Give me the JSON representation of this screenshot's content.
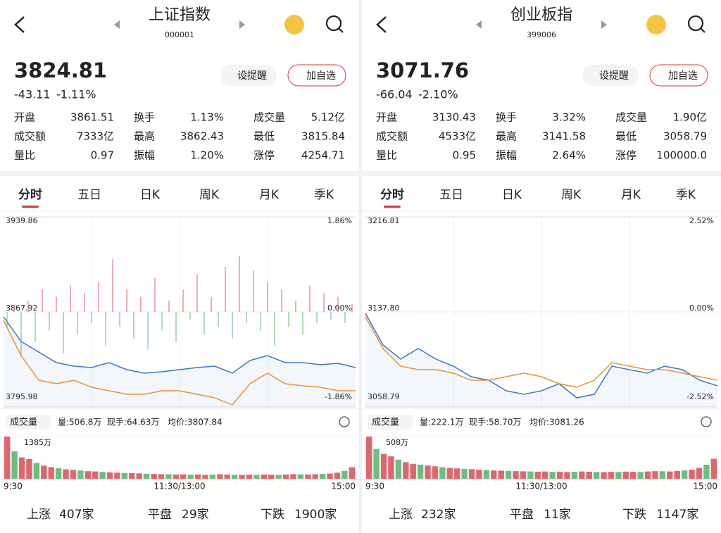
{
  "panels": [
    {
      "title": "上证指数",
      "code": "000001",
      "price": "3824.81",
      "change": "-43.11",
      "change_pct": "-1.11%",
      "buttons": [
        "设提醒",
        "加自选"
      ],
      "stats": [
        {
          "label": "开盘",
          "value": "3861.51",
          "color": "#2e9b4e"
        },
        {
          "label": "换手",
          "value": "1.13%",
          "color": "#222"
        },
        {
          "label": "成交量",
          "value": "5.12亿",
          "color": "#222"
        },
        {
          "label": "成交额",
          "value": "7333亿",
          "color": "#222"
        },
        {
          "label": "最高",
          "value": "3862.43",
          "color": "#2e9b4e"
        },
        {
          "label": "最低",
          "value": "3815.84",
          "color": "#2e9b4e"
        },
        {
          "label": "量比",
          "value": "0.97",
          "color": "#222"
        },
        {
          "label": "振幅",
          "value": "1.20%",
          "color": "#222"
        },
        {
          "label": "涨停",
          "value": "4254.71",
          "color": "#d9363e"
        }
      ],
      "tabs": [
        "分时",
        "五日",
        "日K",
        "周K",
        "月K",
        "季K"
      ],
      "chart": {
        "ylim": [
          3795.98,
          3939.86
        ],
        "yticks": [
          {
            "value": 3795.98,
            "label": "3795.98"
          },
          {
            "value": 3867.92,
            "label": "3867.92"
          },
          {
            "value": 3939.86,
            "label": "3939.86"
          }
        ],
        "pct_labels": [
          "-1.86%",
          "0.00%",
          "1.86%"
        ],
        "series": [
          {
            "color": "#3a78c8",
            "values": [
              3864.19,
              3845.54,
              3837.54,
              3829.55,
              3826.88,
              3825.82,
              3829.55,
              3824.22,
              3821.56,
              3822.62,
              3824.22,
              3825.82,
              3826.88,
              3821.56,
              3831.15,
              3834.88,
              3829.55,
              3829.55,
              3827.95,
              3829.02,
              3825.82
            ]
          },
          {
            "color": "#e8932e",
            "values": [
              3861.53,
              3834.88,
              3816.23,
              3813.56,
              3816.23,
              3810.9,
              3808.23,
              3805.57,
              3805.57,
              3808.23,
              3808.23,
              3805.57,
              3802.9,
              3797.57,
              3813.56,
              3821.56,
              3813.56,
              3811.96,
              3810.9,
              3808.23,
              3808.23
            ]
          }
        ],
        "breadth_bars": [
          -20,
          10,
          -60,
          15,
          -40,
          30,
          -25,
          20,
          -55,
          35,
          -30,
          25,
          -15,
          40,
          -45,
          70,
          -20,
          30,
          -35,
          20,
          -50,
          45,
          -25,
          15,
          -40,
          30,
          -10,
          50,
          -30,
          20,
          -20,
          60,
          -35,
          75,
          -15,
          55,
          -25,
          40,
          -45,
          30,
          -20,
          15,
          -30,
          35,
          -15,
          25,
          -10,
          20,
          -15,
          10
        ]
      },
      "volume_label": "成交量",
      "volume_info": [
        "量:506.8万",
        "现手:64.63万",
        "均价:3807.84"
      ],
      "volume": {
        "max_label": "1385万",
        "ylim": [
          0,
          1385
        ],
        "values": [
          1385,
          900,
          700,
          650,
          520,
          430,
          380,
          350,
          310,
          290,
          270,
          250,
          240,
          225,
          210,
          200,
          190,
          185,
          175,
          165,
          160,
          150,
          150,
          140,
          145,
          135,
          140,
          130,
          135,
          150,
          140,
          130,
          125,
          135,
          130,
          140,
          135,
          130,
          140,
          150,
          145,
          140,
          150,
          160,
          170,
          200,
          260,
          380
        ]
      },
      "times": [
        "9:30",
        "11:30/13:00",
        "15:00"
      ],
      "breadth": [
        {
          "label": "上涨",
          "value": "407家",
          "color": "#d9363e"
        },
        {
          "label": "平盘",
          "value": "29家",
          "color": "#b0b6c2"
        },
        {
          "label": "下跌",
          "value": "1900家",
          "color": "#2e9b4e"
        }
      ]
    },
    {
      "title": "创业板指",
      "code": "399006",
      "price": "3071.76",
      "change": "-66.04",
      "change_pct": "-2.10%",
      "buttons": [
        "设提醒",
        "加自选"
      ],
      "stats": [
        {
          "label": "开盘",
          "value": "3130.43",
          "color": "#2e9b4e"
        },
        {
          "label": "换手",
          "value": "3.32%",
          "color": "#222"
        },
        {
          "label": "成交量",
          "value": "1.90亿",
          "color": "#222"
        },
        {
          "label": "成交额",
          "value": "4533亿",
          "color": "#222"
        },
        {
          "label": "最高",
          "value": "3141.58",
          "color": "#d9363e"
        },
        {
          "label": "最低",
          "value": "3058.79",
          "color": "#2e9b4e"
        },
        {
          "label": "量比",
          "value": "0.95",
          "color": "#222"
        },
        {
          "label": "振幅",
          "value": "2.64%",
          "color": "#222"
        },
        {
          "label": "涨停",
          "value": "100000.0",
          "color": "#d9363e"
        }
      ],
      "tabs": [
        "分时",
        "五日",
        "日K",
        "周K",
        "月K",
        "季K"
      ],
      "chart": {
        "ylim": [
          3058.79,
          3216.81
        ],
        "yticks": [
          {
            "value": 3058.79,
            "label": "3058.79"
          },
          {
            "value": 3137.8,
            "label": "3137.80"
          },
          {
            "value": 3216.81,
            "label": "3216.81"
          }
        ],
        "pct_labels": [
          "-2.52%",
          "0.00%",
          "2.52%"
        ],
        "series": [
          {
            "color": "#3a78c8",
            "values": [
              3136.62,
              3110.28,
              3098.58,
              3107.36,
              3098.58,
              3092.72,
              3083.95,
              3081.02,
              3072.24,
              3069.31,
              3072.24,
              3078.1,
              3066.39,
              3069.31,
              3092.72,
              3089.8,
              3086.87,
              3092.72,
              3089.8,
              3081.02,
              3076.34
            ]
          },
          {
            "color": "#e8932e",
            "values": [
              3133.69,
              3107.36,
              3092.72,
              3089.8,
              3089.8,
              3086.87,
              3081.02,
              3081.02,
              3083.95,
              3086.87,
              3083.95,
              3078.1,
              3075.17,
              3081.02,
              3095.65,
              3092.72,
              3089.8,
              3089.8,
              3086.87,
              3083.95,
              3081.02
            ]
          }
        ]
      },
      "volume_label": "成交量",
      "volume_info": [
        "量:222.1万",
        "现手:58.70万",
        "均价:3081.26"
      ],
      "volume": {
        "max_label": "508万",
        "ylim": [
          0,
          508
        ],
        "values": [
          508,
          360,
          300,
          270,
          230,
          200,
          180,
          170,
          160,
          150,
          140,
          130,
          125,
          120,
          115,
          110,
          105,
          100,
          98,
          95,
          92,
          90,
          88,
          85,
          88,
          84,
          86,
          82,
          84,
          88,
          85,
          82,
          80,
          84,
          82,
          86,
          84,
          82,
          88,
          92,
          90,
          88,
          95,
          100,
          110,
          130,
          170,
          240
        ]
      },
      "times": [
        "9:30",
        "11:30/13:00",
        "15:00"
      ],
      "breadth": [
        {
          "label": "上涨",
          "value": "232家",
          "color": "#d9363e"
        },
        {
          "label": "平盘",
          "value": "11家",
          "color": "#b0b6c2"
        },
        {
          "label": "下跌",
          "value": "1147家",
          "color": "#2e9b4e"
        }
      ]
    }
  ]
}
